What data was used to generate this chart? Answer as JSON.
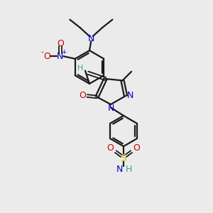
{
  "background_color": "#ebebeb",
  "bond_color": "#1a1a1a",
  "N_color": "#0000cc",
  "O_color": "#cc0000",
  "S_color": "#cccc00",
  "H_color": "#4a9a9a",
  "figsize": [
    3.0,
    3.0
  ],
  "dpi": 100,
  "xlim": [
    0,
    10
  ],
  "ylim": [
    0,
    10
  ]
}
